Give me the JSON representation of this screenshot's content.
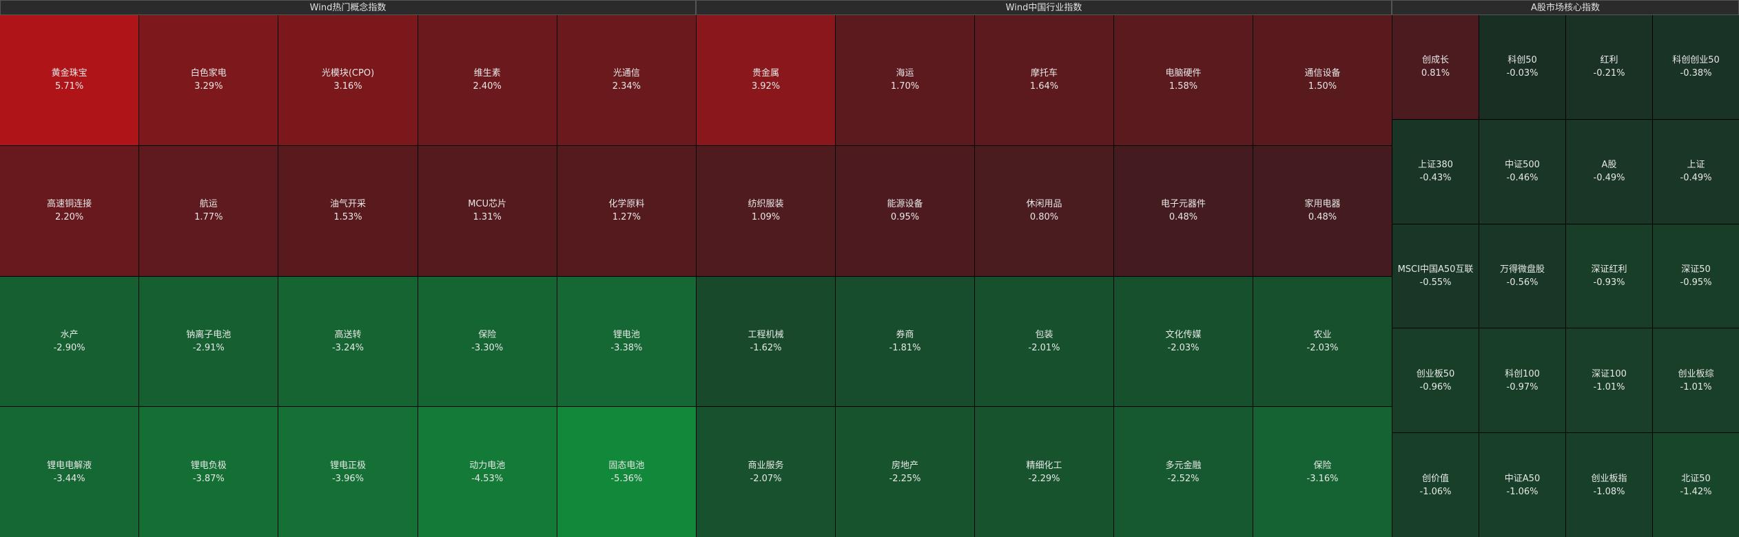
{
  "panels": [
    {
      "title": "Wind热门概念指数",
      "columns": 5,
      "tiles": [
        {
          "name": "黄金珠宝",
          "value": 5.71,
          "label": "5.71%"
        },
        {
          "name": "白色家电",
          "value": 3.29,
          "label": "3.29%"
        },
        {
          "name": "光模块(CPO)",
          "value": 3.16,
          "label": "3.16%"
        },
        {
          "name": "维生素",
          "value": 2.4,
          "label": "2.40%"
        },
        {
          "name": "光通信",
          "value": 2.34,
          "label": "2.34%"
        },
        {
          "name": "高速铜连接",
          "value": 2.2,
          "label": "2.20%"
        },
        {
          "name": "航运",
          "value": 1.77,
          "label": "1.77%"
        },
        {
          "name": "油气开采",
          "value": 1.53,
          "label": "1.53%"
        },
        {
          "name": "MCU芯片",
          "value": 1.31,
          "label": "1.31%"
        },
        {
          "name": "化学原料",
          "value": 1.27,
          "label": "1.27%"
        },
        {
          "name": "水产",
          "value": -2.9,
          "label": "-2.90%"
        },
        {
          "name": "钠离子电池",
          "value": -2.91,
          "label": "-2.91%"
        },
        {
          "name": "高送转",
          "value": -3.24,
          "label": "-3.24%"
        },
        {
          "name": "保险",
          "value": -3.3,
          "label": "-3.30%"
        },
        {
          "name": "锂电池",
          "value": -3.38,
          "label": "-3.38%"
        },
        {
          "name": "锂电电解液",
          "value": -3.44,
          "label": "-3.44%"
        },
        {
          "name": "锂电负极",
          "value": -3.87,
          "label": "-3.87%"
        },
        {
          "name": "锂电正极",
          "value": -3.96,
          "label": "-3.96%"
        },
        {
          "name": "动力电池",
          "value": -4.53,
          "label": "-4.53%"
        },
        {
          "name": "固态电池",
          "value": -5.36,
          "label": "-5.36%"
        }
      ]
    },
    {
      "title": "Wind中国行业指数",
      "columns": 5,
      "tiles": [
        {
          "name": "贵金属",
          "value": 3.92,
          "label": "3.92%"
        },
        {
          "name": "海运",
          "value": 1.7,
          "label": "1.70%"
        },
        {
          "name": "摩托车",
          "value": 1.64,
          "label": "1.64%"
        },
        {
          "name": "电脑硬件",
          "value": 1.58,
          "label": "1.58%"
        },
        {
          "name": "通信设备",
          "value": 1.5,
          "label": "1.50%"
        },
        {
          "name": "纺织服装",
          "value": 1.09,
          "label": "1.09%"
        },
        {
          "name": "能源设备",
          "value": 0.95,
          "label": "0.95%"
        },
        {
          "name": "休闲用品",
          "value": 0.8,
          "label": "0.80%"
        },
        {
          "name": "电子元器件",
          "value": 0.48,
          "label": "0.48%"
        },
        {
          "name": "家用电器",
          "value": 0.48,
          "label": "0.48%"
        },
        {
          "name": "工程机械",
          "value": -1.62,
          "label": "-1.62%"
        },
        {
          "name": "券商",
          "value": -1.81,
          "label": "-1.81%"
        },
        {
          "name": "包装",
          "value": -2.01,
          "label": "-2.01%"
        },
        {
          "name": "文化传媒",
          "value": -2.03,
          "label": "-2.03%"
        },
        {
          "name": "农业",
          "value": -2.03,
          "label": "-2.03%"
        },
        {
          "name": "商业服务",
          "value": -2.07,
          "label": "-2.07%"
        },
        {
          "name": "房地产",
          "value": -2.25,
          "label": "-2.25%"
        },
        {
          "name": "精细化工",
          "value": -2.29,
          "label": "-2.29%"
        },
        {
          "name": "多元金融",
          "value": -2.52,
          "label": "-2.52%"
        },
        {
          "name": "保险",
          "value": -3.16,
          "label": "-3.16%"
        }
      ]
    },
    {
      "title": "A股市场核心指数",
      "columns": 4,
      "tiles": [
        {
          "name": "创成长",
          "value": 0.81,
          "label": "0.81%"
        },
        {
          "name": "科创50",
          "value": -0.03,
          "label": "-0.03%"
        },
        {
          "name": "红利",
          "value": -0.21,
          "label": "-0.21%"
        },
        {
          "name": "科创创业50",
          "value": -0.38,
          "label": "-0.38%"
        },
        {
          "name": "上证380",
          "value": -0.43,
          "label": "-0.43%"
        },
        {
          "name": "中证500",
          "value": -0.46,
          "label": "-0.46%"
        },
        {
          "name": "A股",
          "value": -0.49,
          "label": "-0.49%"
        },
        {
          "name": "上证",
          "value": -0.49,
          "label": "-0.49%"
        },
        {
          "name": "MSCI中国A50互联",
          "value": -0.55,
          "label": "-0.55%"
        },
        {
          "name": "万得微盘股",
          "value": -0.56,
          "label": "-0.56%"
        },
        {
          "name": "深证红利",
          "value": -0.93,
          "label": "-0.93%"
        },
        {
          "name": "深证50",
          "value": -0.95,
          "label": "-0.95%"
        },
        {
          "name": "创业板50",
          "value": -0.96,
          "label": "-0.96%"
        },
        {
          "name": "科创100",
          "value": -0.97,
          "label": "-0.97%"
        },
        {
          "name": "深证100",
          "value": -1.01,
          "label": "-1.01%"
        },
        {
          "name": "创业板综",
          "value": -1.01,
          "label": "-1.01%"
        },
        {
          "name": "创价值",
          "value": -1.06,
          "label": "-1.06%"
        },
        {
          "name": "中证A50",
          "value": -1.06,
          "label": "-1.06%"
        },
        {
          "name": "创业板指",
          "value": -1.08,
          "label": "-1.08%"
        },
        {
          "name": "北证50",
          "value": -1.42,
          "label": "-1.42%"
        }
      ]
    }
  ]
}
